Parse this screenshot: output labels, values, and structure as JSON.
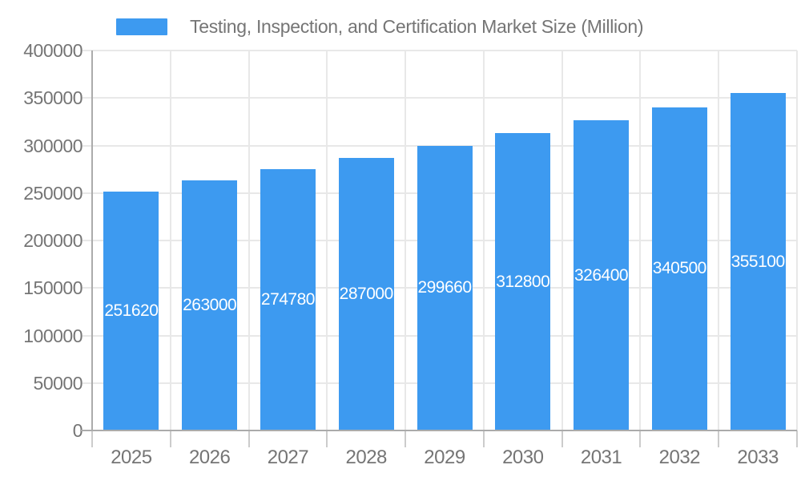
{
  "chart_data": {
    "type": "bar",
    "title": "Testing, Inspection, and Certification Market Size (Million)",
    "categories": [
      "2025",
      "2026",
      "2027",
      "2028",
      "2029",
      "2030",
      "2031",
      "2032",
      "2033"
    ],
    "series": [
      {
        "name": "Testing, Inspection, and Certification Market Size (Million)",
        "values": [
          251620,
          263000,
          274780,
          287000,
          299660,
          312800,
          326400,
          340500,
          355100
        ]
      }
    ],
    "xlabel": "",
    "ylabel": "",
    "ylim": [
      0,
      400000
    ],
    "ytick_interval": 50000,
    "yticks": [
      0,
      50000,
      100000,
      150000,
      200000,
      250000,
      300000,
      350000,
      400000
    ],
    "grid": "on",
    "legend_position": "top",
    "value_labels": "inside-center"
  },
  "colors": {
    "bar": "#3d9af0",
    "bar_value_label": "#ffffff",
    "axis_text": "#757575",
    "grid_line": "#e8e8e8",
    "axis_line": "#ababab",
    "tick_mark": "#cccccc",
    "background": "#ffffff"
  }
}
